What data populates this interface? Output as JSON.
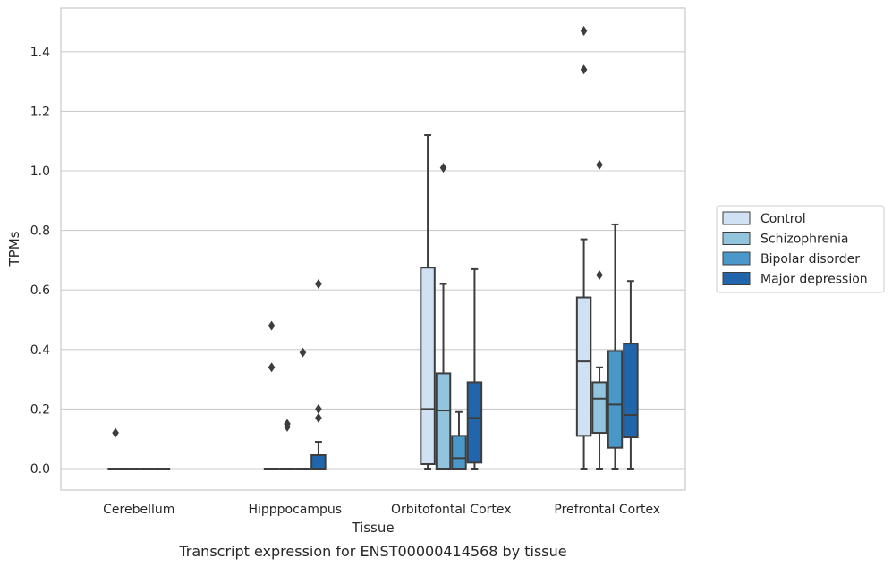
{
  "chart_data": {
    "type": "box",
    "xlabel": "Tissue",
    "ylabel": "TPMs",
    "caption": "Transcript expression for ENST00000414568 by tissue",
    "ylim": [
      -0.07,
      1.55
    ],
    "yticks": [
      "0.0",
      "0.2",
      "0.4",
      "0.6",
      "0.8",
      "1.0",
      "1.2",
      "1.4"
    ],
    "grid": "horizontal",
    "legend_position": "right",
    "categories": [
      "Cerebellum",
      "Hipppocampus",
      "Orbitofontal Cortex",
      "Prefrontal Cortex"
    ],
    "series": [
      {
        "name": "Control",
        "color": "#cfe1f2",
        "boxes": [
          {
            "category": "Cerebellum",
            "whisker_low": 0,
            "q1": 0,
            "median": 0,
            "q3": 0,
            "whisker_high": 0,
            "outliers": [
              0.12
            ]
          },
          {
            "category": "Hipppocampus",
            "whisker_low": 0,
            "q1": 0,
            "median": 0,
            "q3": 0,
            "whisker_high": 0,
            "outliers": [
              0.48,
              0.34
            ]
          },
          {
            "category": "Orbitofontal Cortex",
            "whisker_low": 0,
            "q1": 0.015,
            "median": 0.2,
            "q3": 0.675,
            "whisker_high": 1.12,
            "outliers": []
          },
          {
            "category": "Prefrontal Cortex",
            "whisker_low": 0,
            "q1": 0.11,
            "median": 0.36,
            "q3": 0.575,
            "whisker_high": 0.77,
            "outliers": [
              1.47,
              1.34
            ]
          }
        ]
      },
      {
        "name": "Schizophrenia",
        "color": "#93c4de",
        "boxes": [
          {
            "category": "Cerebellum",
            "whisker_low": 0,
            "q1": 0,
            "median": 0,
            "q3": 0,
            "whisker_high": 0,
            "outliers": []
          },
          {
            "category": "Hipppocampus",
            "whisker_low": 0,
            "q1": 0,
            "median": 0,
            "q3": 0,
            "whisker_high": 0,
            "outliers": [
              0.15,
              0.14
            ]
          },
          {
            "category": "Orbitofontal Cortex",
            "whisker_low": 0,
            "q1": 0,
            "median": 0.195,
            "q3": 0.32,
            "whisker_high": 0.62,
            "outliers": [
              1.01
            ]
          },
          {
            "category": "Prefrontal Cortex",
            "whisker_low": 0,
            "q1": 0.12,
            "median": 0.235,
            "q3": 0.29,
            "whisker_high": 0.34,
            "outliers": [
              1.02,
              0.65
            ]
          }
        ]
      },
      {
        "name": "Bipolar disorder",
        "color": "#4a98c9",
        "boxes": [
          {
            "category": "Cerebellum",
            "whisker_low": 0,
            "q1": 0,
            "median": 0,
            "q3": 0,
            "whisker_high": 0,
            "outliers": []
          },
          {
            "category": "Hipppocampus",
            "whisker_low": 0,
            "q1": 0,
            "median": 0,
            "q3": 0,
            "whisker_high": 0,
            "outliers": [
              0.39
            ]
          },
          {
            "category": "Orbitofontal Cortex",
            "whisker_low": 0,
            "q1": 0,
            "median": 0.035,
            "q3": 0.11,
            "whisker_high": 0.19,
            "outliers": []
          },
          {
            "category": "Prefrontal Cortex",
            "whisker_low": 0,
            "q1": 0.07,
            "median": 0.215,
            "q3": 0.395,
            "whisker_high": 0.82,
            "outliers": []
          }
        ]
      },
      {
        "name": "Major depression",
        "color": "#2166ac",
        "boxes": [
          {
            "category": "Cerebellum",
            "whisker_low": 0,
            "q1": 0,
            "median": 0,
            "q3": 0,
            "whisker_high": 0,
            "outliers": []
          },
          {
            "category": "Hipppocampus",
            "whisker_low": 0,
            "q1": 0,
            "median": 0,
            "q3": 0.045,
            "whisker_high": 0.09,
            "outliers": [
              0.62,
              0.2,
              0.17
            ]
          },
          {
            "category": "Orbitofontal Cortex",
            "whisker_low": 0,
            "q1": 0.02,
            "median": 0.17,
            "q3": 0.29,
            "whisker_high": 0.67,
            "outliers": []
          },
          {
            "category": "Prefrontal Cortex",
            "whisker_low": 0,
            "q1": 0.105,
            "median": 0.18,
            "q3": 0.42,
            "whisker_high": 0.63,
            "outliers": []
          }
        ]
      }
    ]
  }
}
